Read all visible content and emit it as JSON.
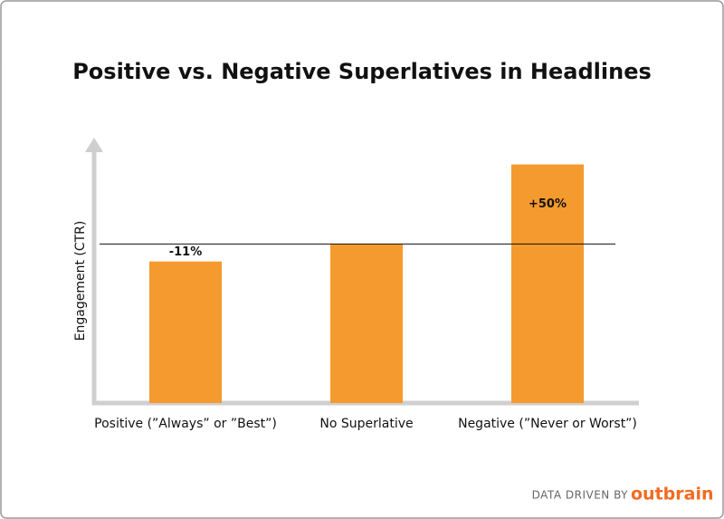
{
  "chart_data": {
    "type": "bar",
    "title": "Positive vs. Negative Superlatives in Headlines",
    "y_label": "Engagement (CTR)",
    "categories": [
      "Positive (”Always” or ”Best”)",
      "No Superlative",
      "Negative (”Never or Worst”)"
    ],
    "values": [
      -11,
      0,
      50
    ],
    "value_labels": [
      "-11%",
      null,
      "+50%"
    ],
    "color": "#f59a2e",
    "ylim": [
      -100,
      60
    ],
    "footer": "DATA DRIVEN BY",
    "brand": "outbrain"
  }
}
